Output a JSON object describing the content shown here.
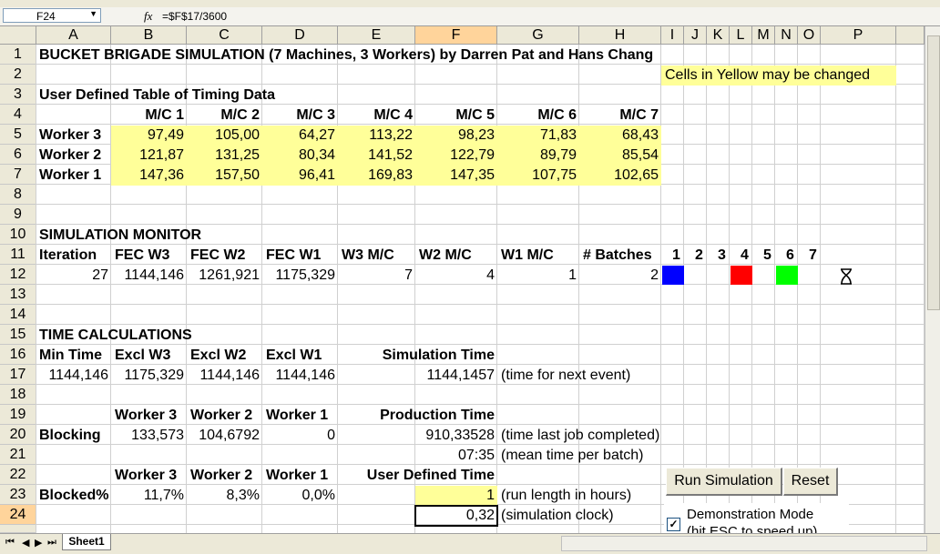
{
  "name_box": "F24",
  "fx_label": "fx",
  "formula": "=$F$17/3600",
  "columns": [
    "A",
    "B",
    "C",
    "D",
    "E",
    "F",
    "G",
    "H",
    "I",
    "J",
    "K",
    "L",
    "M",
    "N",
    "O",
    "P"
  ],
  "rows": [
    "1",
    "2",
    "3",
    "4",
    "5",
    "6",
    "7",
    "8",
    "9",
    "10",
    "11",
    "12",
    "13",
    "14",
    "15",
    "16",
    "17",
    "18",
    "19",
    "20",
    "21",
    "22",
    "23",
    "24"
  ],
  "cells": {
    "title": "BUCKET BRIGADE SIMULATION (7 Machines, 3 Workers) by Darren Pat and Hans Chang",
    "yellow_note": "Cells in Yellow may be changed",
    "timing_title": "User Defined Table of Timing Data",
    "mc_headers": [
      "M/C 1",
      "M/C 2",
      "M/C 3",
      "M/C 4",
      "M/C 5",
      "M/C 6",
      "M/C 7"
    ],
    "workers": [
      {
        "label": "Worker 3",
        "values": [
          "97,49",
          "105,00",
          "64,27",
          "113,22",
          "98,23",
          "71,83",
          "68,43"
        ]
      },
      {
        "label": "Worker 2",
        "values": [
          "121,87",
          "131,25",
          "80,34",
          "141,52",
          "122,79",
          "89,79",
          "85,54"
        ]
      },
      {
        "label": "Worker 1",
        "values": [
          "147,36",
          "157,50",
          "96,41",
          "169,83",
          "147,35",
          "107,75",
          "102,65"
        ]
      }
    ],
    "sim_monitor": "SIMULATION MONITOR",
    "monitor_headers": [
      "Iteration",
      "FEC W3",
      "FEC W2",
      "FEC W1",
      "W3 M/C",
      "W2 M/C",
      "W1 M/C",
      "# Batches"
    ],
    "monitor_values": [
      "27",
      "1144,146",
      "1261,921",
      "1175,329",
      "7",
      "4",
      "1",
      "2"
    ],
    "machine_numbers": [
      "1",
      "2",
      "3",
      "4",
      "5",
      "6",
      "7"
    ],
    "time_calc": "TIME CALCULATIONS",
    "time_headers": [
      "Min Time",
      "Excl W3",
      "Excl W2",
      "Excl W1"
    ],
    "time_values": [
      "1144,146",
      "1175,329",
      "1144,146",
      "1144,146"
    ],
    "sim_time_label": "Simulation Time",
    "sim_time_value": "1144,1457",
    "sim_time_note": "(time for next event)",
    "worker_headers": [
      "Worker 3",
      "Worker 2",
      "Worker 1"
    ],
    "production_time_label": "Production Time",
    "blocking_label": "Blocking",
    "blocking_values": [
      "133,573",
      "104,6792",
      "0"
    ],
    "production_time_value": "910,33528",
    "production_time_note": "(time last job completed)",
    "mean_time_value": "07:35",
    "mean_time_note": "(mean time per batch)",
    "user_time_label": "User Defined Time",
    "blocked_pct_label": "Blocked%",
    "blocked_pct_values": [
      "11,7%",
      "8,3%",
      "0,0%"
    ],
    "run_length_value": "1",
    "run_length_note": "(run length in hours)",
    "sim_clock_value": "0,32",
    "sim_clock_note": "(simulation clock)"
  },
  "machine_colors": {
    "m1": "#0000ff",
    "m4": "#ff0000",
    "m6": "#00ff00"
  },
  "buttons": {
    "run": "Run Simulation",
    "reset": "Reset"
  },
  "demo_mode": {
    "label": "Demonstration Mode",
    "sub": "(hit ESC to speed up)",
    "checked": true
  },
  "sheet_tab": "Sheet1"
}
